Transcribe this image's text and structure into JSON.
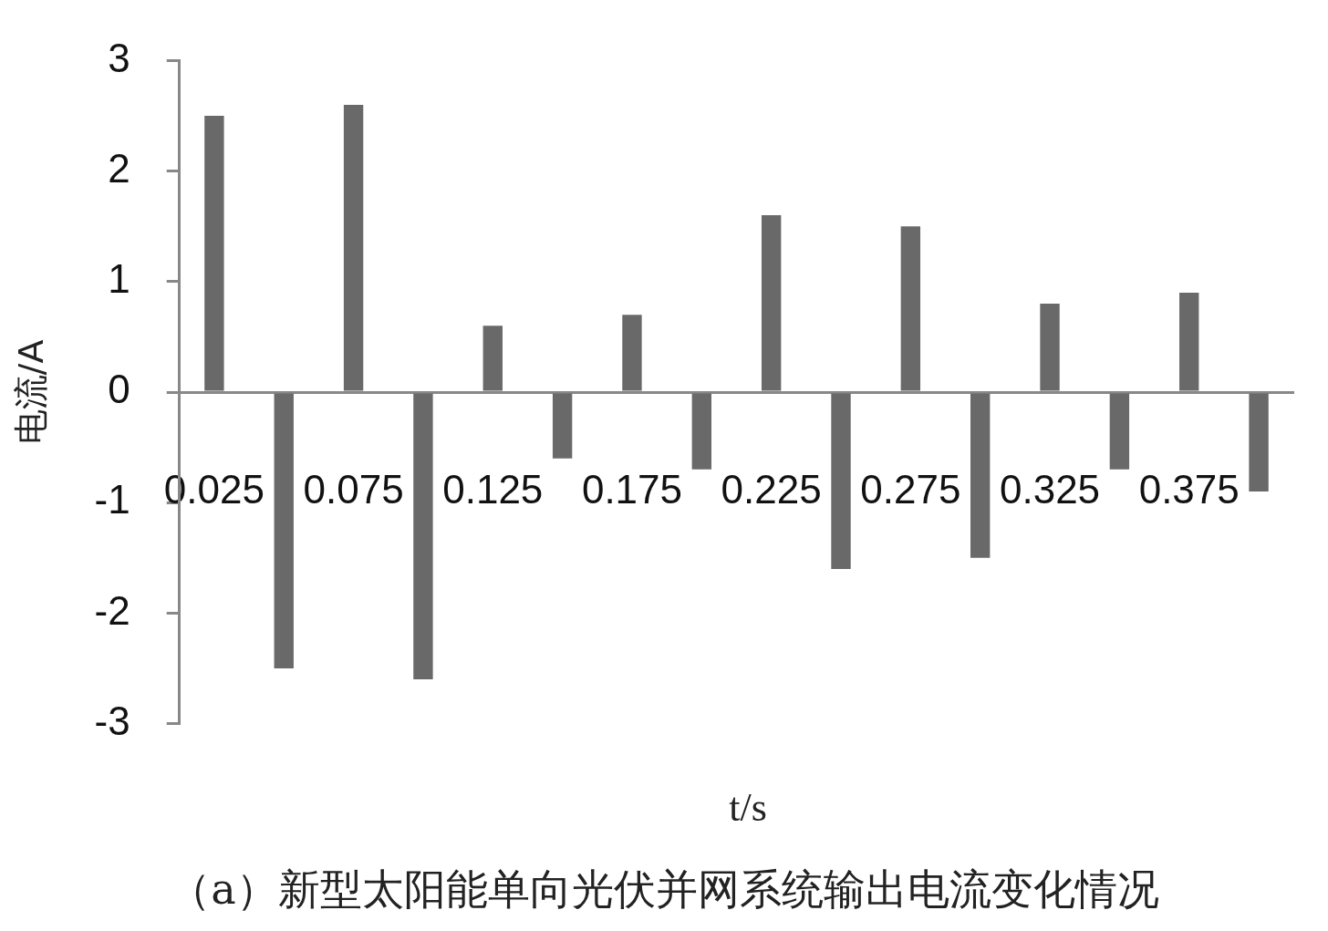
{
  "chart_data": {
    "type": "bar",
    "title": "（a）新型太阳能单向光伏并网系统输出电流变化情况",
    "xlabel": "t/s",
    "ylabel": "电流/A",
    "categories": [
      "0.025",
      null,
      "0.075",
      null,
      "0.125",
      null,
      "0.175",
      null,
      "0.225",
      null,
      "0.275",
      null,
      "0.325",
      null,
      "0.375",
      null
    ],
    "values": [
      2.5,
      -2.5,
      2.6,
      -2.6,
      0.6,
      -0.6,
      0.7,
      -0.7,
      1.6,
      -1.6,
      1.5,
      -1.5,
      0.8,
      -0.7,
      0.9,
      -0.9
    ],
    "color": "#696969",
    "ylim": [
      -3,
      3
    ],
    "yticks": [
      -3,
      -2,
      -1,
      0,
      1,
      2,
      3
    ],
    "grid": false,
    "legend": false
  }
}
